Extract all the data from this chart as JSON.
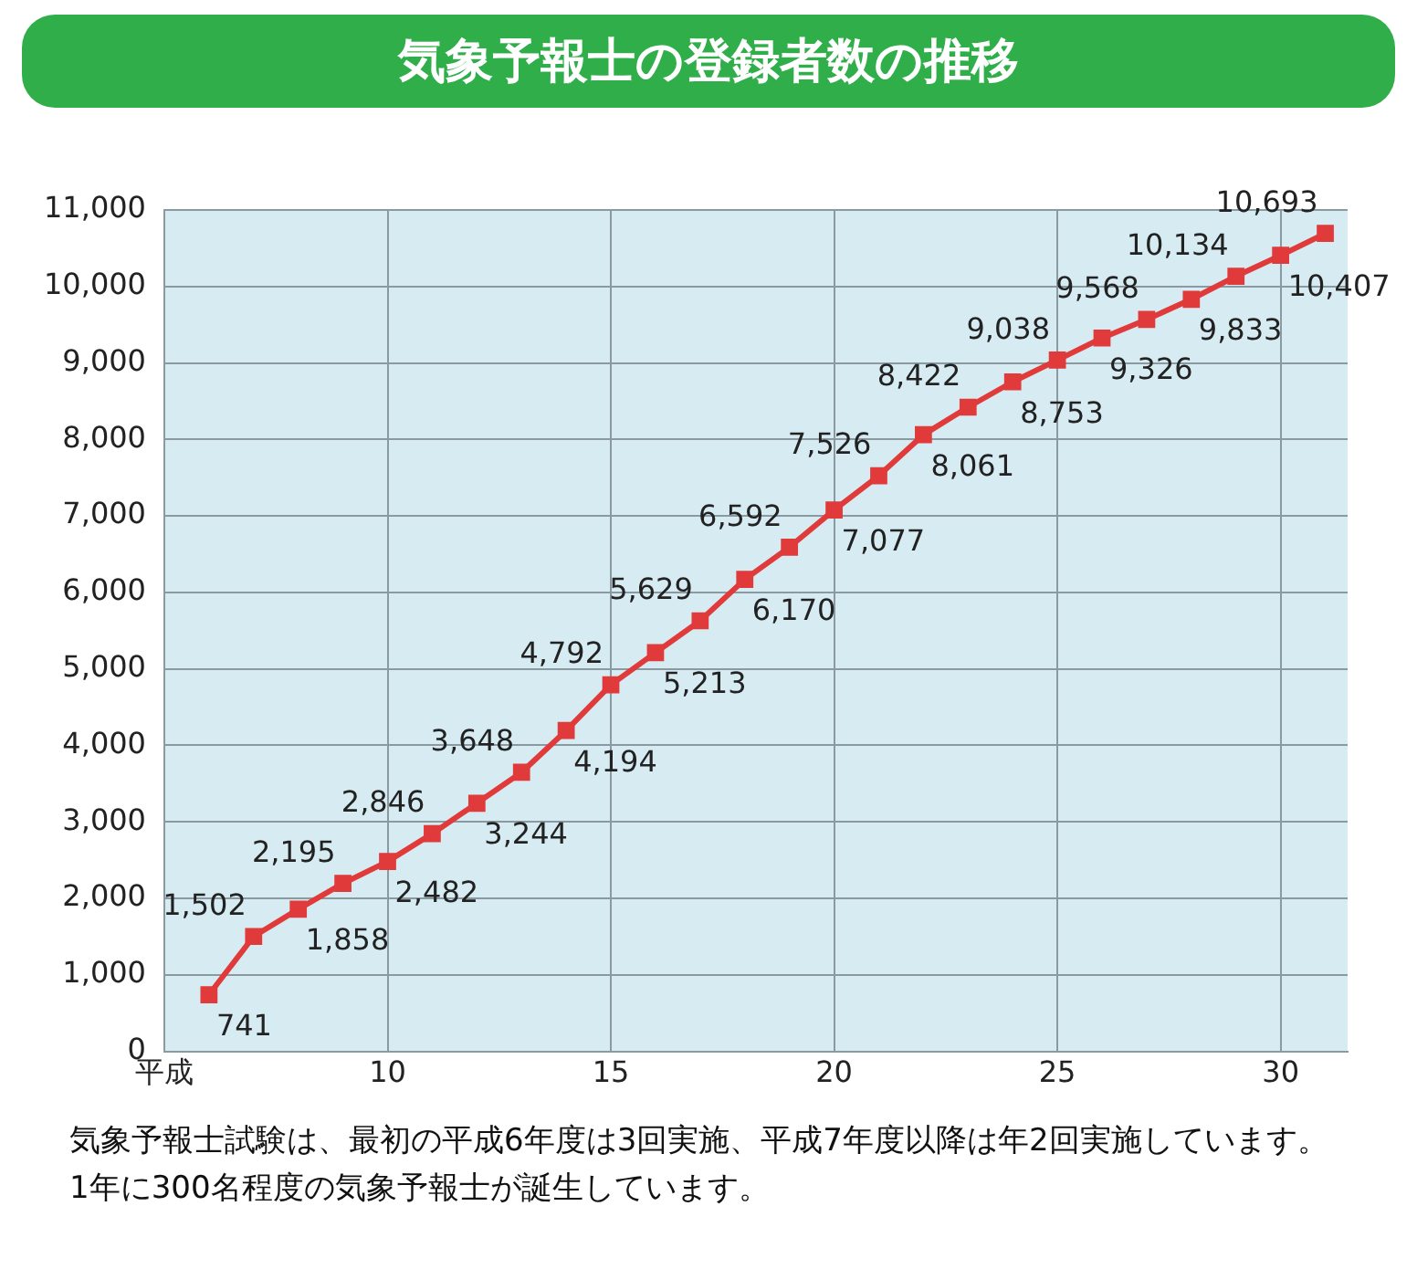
{
  "chart_data": {
    "type": "line",
    "title": "気象予報士の登録者数の推移",
    "x": [
      6,
      7,
      8,
      9,
      10,
      11,
      12,
      13,
      14,
      15,
      16,
      17,
      18,
      19,
      20,
      21,
      22,
      23,
      24,
      25,
      26,
      27,
      28,
      29,
      30,
      31
    ],
    "series": [
      {
        "color": "#e03a3a",
        "values": [
          741,
          1502,
          1858,
          2195,
          2482,
          2846,
          3244,
          3648,
          4194,
          4792,
          5213,
          5629,
          6170,
          6592,
          7077,
          7526,
          8061,
          8422,
          8753,
          9038,
          9326,
          9568,
          9833,
          10134,
          10407,
          10693
        ],
        "value_labels": [
          "741",
          "1,502",
          "1,858",
          "2,195",
          "2,482",
          "2,846",
          "3,244",
          "3,648",
          "4,194",
          "4,792",
          "5,213",
          "5,629",
          "6,170",
          "6,592",
          "7,077",
          "7,526",
          "8,061",
          "8,422",
          "8,753",
          "9,038",
          "9,326",
          "9,568",
          "9,833",
          "10,134",
          "10,407",
          "10,693"
        ]
      }
    ],
    "xlim": [
      5,
      31.5
    ],
    "xticks": [
      {
        "value": 5,
        "label": "平成"
      },
      10,
      15,
      20,
      25,
      30
    ],
    "ylim": [
      0,
      11000
    ],
    "yticks": [
      0,
      {
        "value": 1000,
        "label": "1,000"
      },
      {
        "value": 2000,
        "label": "2,000"
      },
      {
        "value": 3000,
        "label": "3,000"
      },
      {
        "value": 4000,
        "label": "4,000"
      },
      {
        "value": 5000,
        "label": "5,000"
      },
      {
        "value": 6000,
        "label": "6,000"
      },
      {
        "value": 7000,
        "label": "7,000"
      },
      {
        "value": 8000,
        "label": "8,000"
      },
      {
        "value": 9000,
        "label": "9,000"
      },
      {
        "value": 10000,
        "label": "10,000"
      },
      {
        "value": 11000,
        "label": "11,000"
      }
    ],
    "grid": true,
    "legend": false,
    "marker": "square",
    "line_style": "solid",
    "annotations": [
      "気象予報士試験は、最初の平成6年度は3回実施、平成7年度以降は年2回実施しています。1年に300名程度の気象予報士が誕生しています。"
    ]
  }
}
